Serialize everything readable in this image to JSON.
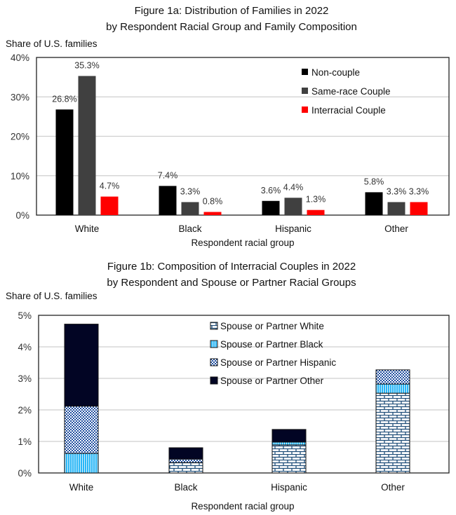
{
  "chart_data": [
    {
      "type": "bar",
      "title": "Figure 1a: Distribution of Families in 2022",
      "subtitle": "by Respondent Racial Group and Family Composition",
      "ylabel": "Share of U.S. families",
      "xlabel": "Respondent racial group",
      "categories": [
        "White",
        "Black",
        "Hispanic",
        "Other"
      ],
      "ylim": [
        0,
        40
      ],
      "yticks": [
        "0%",
        "10%",
        "20%",
        "30%",
        "40%"
      ],
      "grid": true,
      "legend_position": "top-right",
      "series": [
        {
          "name": "Non-couple",
          "color": "#000000",
          "values": [
            26.8,
            7.4,
            3.6,
            5.8
          ],
          "labels": [
            "26.8%",
            "7.4%",
            "3.6%",
            "5.8%"
          ]
        },
        {
          "name": "Same-race Couple",
          "color": "#404040",
          "values": [
            35.3,
            3.3,
            4.4,
            3.3
          ],
          "labels": [
            "35.3%",
            "3.3%",
            "4.4%",
            "3.3%"
          ]
        },
        {
          "name": "Interracial Couple",
          "color": "#ff0000",
          "values": [
            4.7,
            0.8,
            1.3,
            3.3
          ],
          "labels": [
            "4.7%",
            "0.8%",
            "1.3%",
            "3.3%"
          ]
        }
      ]
    },
    {
      "type": "stacked-bar",
      "title": "Figure 1b: Composition of Interracial Couples in 2022",
      "subtitle": "by Respondent and Spouse or Partner Racial Groups",
      "ylabel": "Share of U.S. families",
      "xlabel": "Respondent racial group",
      "categories": [
        "White",
        "Black",
        "Hispanic",
        "Other"
      ],
      "ylim": [
        0,
        5
      ],
      "yticks": [
        "0%",
        "1%",
        "2%",
        "3%",
        "4%",
        "5%"
      ],
      "grid": true,
      "legend_position": "top-center",
      "series": [
        {
          "name": "Spouse or Partner White",
          "pattern": "brick",
          "color": "#1f4e79",
          "values": [
            0,
            0.33,
            0.89,
            2.53
          ]
        },
        {
          "name": "Spouse or Partner Black",
          "pattern": "vertical-lines",
          "color": "#29b6f6",
          "values": [
            0.62,
            0,
            0.09,
            0.29
          ]
        },
        {
          "name": "Spouse or Partner Hispanic",
          "pattern": "checker",
          "color": "#1f4ea0",
          "values": [
            1.5,
            0.11,
            0,
            0.45
          ]
        },
        {
          "name": "Spouse or Partner Other",
          "pattern": "solid",
          "color": "#020524",
          "values": [
            2.6,
            0.36,
            0.4,
            0
          ]
        }
      ]
    }
  ]
}
